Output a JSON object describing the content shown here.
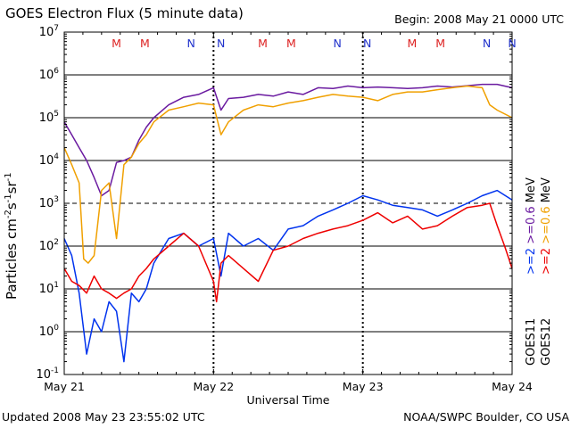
{
  "header": {
    "title": "GOES Electron Flux (5 minute data)",
    "begin": "Begin: 2008 May 21 0000 UTC"
  },
  "footer": {
    "updated": "Updated 2008 May 23 23:55:02 UTC",
    "credit": "NOAA/SWPC Boulder, CO USA"
  },
  "colors": {
    "goes11_hi": "#6a1aa0",
    "goes12_hi": "#f0a000",
    "goes11_lo": "#0033ee",
    "goes12_lo": "#ee0000",
    "mark_m": "#dd2222",
    "mark_n": "#2233cc"
  },
  "chart_data": {
    "type": "line",
    "title": "GOES Electron Flux (5 minute data)",
    "xlabel": "Universal Time",
    "ylabel": "Particles cm-2s-1sr-1",
    "xlim": [
      "2008-05-21T00:00",
      "2008-05-24T00:00"
    ],
    "ylim": [
      0.1,
      10000000
    ],
    "yscale": "log",
    "x_tick_labels": [
      "May 21",
      "May 22",
      "May 23",
      "May 24"
    ],
    "y_ticks": [
      {
        "value": 0.1,
        "base": "10",
        "exp": "-1"
      },
      {
        "value": 1,
        "base": "10",
        "exp": "0"
      },
      {
        "value": 10,
        "base": "10",
        "exp": "1"
      },
      {
        "value": 100,
        "base": "10",
        "exp": "2"
      },
      {
        "value": 1000,
        "base": "10",
        "exp": "3"
      },
      {
        "value": 10000,
        "base": "10",
        "exp": "4"
      },
      {
        "value": 100000,
        "base": "10",
        "exp": "5"
      },
      {
        "value": 1000000,
        "base": "10",
        "exp": "6"
      },
      {
        "value": 10000000,
        "base": "10",
        "exp": "7"
      }
    ],
    "dashed_threshold": 1000,
    "grid": true,
    "markers": [
      {
        "label": "M",
        "day": 0.35
      },
      {
        "label": "M",
        "day": 0.54
      },
      {
        "label": "N",
        "day": 0.85
      },
      {
        "label": "N",
        "day": 1.05
      },
      {
        "label": "M",
        "day": 1.33
      },
      {
        "label": "M",
        "day": 1.52
      },
      {
        "label": "N",
        "day": 1.83
      },
      {
        "label": "N",
        "day": 2.03
      },
      {
        "label": "M",
        "day": 2.33
      },
      {
        "label": "M",
        "day": 2.52
      },
      {
        "label": "N",
        "day": 2.83
      },
      {
        "label": "N",
        "day": 3.0
      }
    ],
    "legend_labels": {
      "goes11": "GOES11",
      "goes12": "GOES12",
      "ge2": ">=2",
      "ge06": ">=0.6",
      "mev": "MeV"
    },
    "series": [
      {
        "name": ">=0.6 MeV GOES11",
        "color": "#6a1aa0",
        "x": [
          0,
          0.05,
          0.1,
          0.15,
          0.2,
          0.25,
          0.3,
          0.35,
          0.4,
          0.45,
          0.5,
          0.55,
          0.6,
          0.7,
          0.8,
          0.9,
          1.0,
          1.05,
          1.1,
          1.2,
          1.3,
          1.4,
          1.5,
          1.6,
          1.7,
          1.8,
          1.9,
          2.0,
          2.1,
          2.2,
          2.3,
          2.4,
          2.5,
          2.6,
          2.7,
          2.8,
          2.9,
          3.0
        ],
        "y": [
          80000,
          40000,
          20000,
          10000,
          4000,
          1500,
          2000,
          9000,
          10000,
          12000,
          30000,
          60000,
          100000,
          200000,
          300000,
          350000,
          500000,
          150000,
          280000,
          300000,
          350000,
          320000,
          400000,
          350000,
          500000,
          480000,
          550000,
          500000,
          520000,
          500000,
          480000,
          500000,
          550000,
          520000,
          560000,
          600000,
          600000,
          500000
        ]
      },
      {
        "name": ">=0.6 MeV GOES12",
        "color": "#f0a000",
        "x": [
          0,
          0.05,
          0.1,
          0.13,
          0.16,
          0.2,
          0.25,
          0.3,
          0.35,
          0.4,
          0.45,
          0.5,
          0.55,
          0.6,
          0.7,
          0.8,
          0.9,
          1.0,
          1.05,
          1.1,
          1.2,
          1.3,
          1.4,
          1.5,
          1.6,
          1.7,
          1.8,
          1.9,
          2.0,
          2.1,
          2.2,
          2.3,
          2.4,
          2.5,
          2.6,
          2.7,
          2.8,
          2.85,
          2.9,
          3.0
        ],
        "y": [
          20000,
          8000,
          3000,
          50,
          40,
          60,
          2000,
          3000,
          150,
          8000,
          12000,
          25000,
          40000,
          80000,
          150000,
          180000,
          220000,
          200000,
          40000,
          80000,
          150000,
          200000,
          180000,
          220000,
          250000,
          300000,
          350000,
          320000,
          300000,
          250000,
          350000,
          400000,
          400000,
          450000,
          500000,
          550000,
          500000,
          200000,
          150000,
          100000
        ]
      },
      {
        "name": ">=2 MeV GOES11",
        "color": "#0033ee",
        "x": [
          0,
          0.05,
          0.1,
          0.15,
          0.2,
          0.25,
          0.3,
          0.35,
          0.4,
          0.45,
          0.5,
          0.55,
          0.6,
          0.7,
          0.8,
          0.9,
          1.0,
          1.05,
          1.1,
          1.2,
          1.3,
          1.4,
          1.5,
          1.6,
          1.7,
          1.8,
          1.9,
          2.0,
          2.1,
          2.2,
          2.3,
          2.4,
          2.5,
          2.6,
          2.7,
          2.8,
          2.9,
          3.0
        ],
        "y": [
          150,
          60,
          8,
          0.3,
          2,
          1,
          5,
          3,
          0.2,
          8,
          5,
          10,
          40,
          150,
          200,
          100,
          150,
          20,
          200,
          100,
          150,
          80,
          250,
          300,
          500,
          700,
          1000,
          1500,
          1200,
          900,
          800,
          700,
          500,
          700,
          1000,
          1500,
          2000,
          1200
        ]
      },
      {
        "name": ">=2 MeV GOES12",
        "color": "#ee0000",
        "x": [
          0,
          0.05,
          0.1,
          0.15,
          0.2,
          0.25,
          0.3,
          0.35,
          0.4,
          0.45,
          0.5,
          0.55,
          0.6,
          0.7,
          0.8,
          0.9,
          1.0,
          1.02,
          1.05,
          1.1,
          1.2,
          1.3,
          1.4,
          1.5,
          1.6,
          1.7,
          1.8,
          1.9,
          2.0,
          2.1,
          2.2,
          2.3,
          2.4,
          2.5,
          2.6,
          2.7,
          2.8,
          2.85,
          2.9,
          2.95,
          3.0
        ],
        "y": [
          30,
          15,
          12,
          8,
          20,
          10,
          8,
          6,
          8,
          10,
          20,
          30,
          50,
          100,
          200,
          100,
          15,
          5,
          40,
          60,
          30,
          15,
          80,
          100,
          150,
          200,
          250,
          300,
          400,
          600,
          350,
          500,
          250,
          300,
          500,
          800,
          900,
          1000,
          300,
          100,
          30
        ]
      }
    ]
  }
}
